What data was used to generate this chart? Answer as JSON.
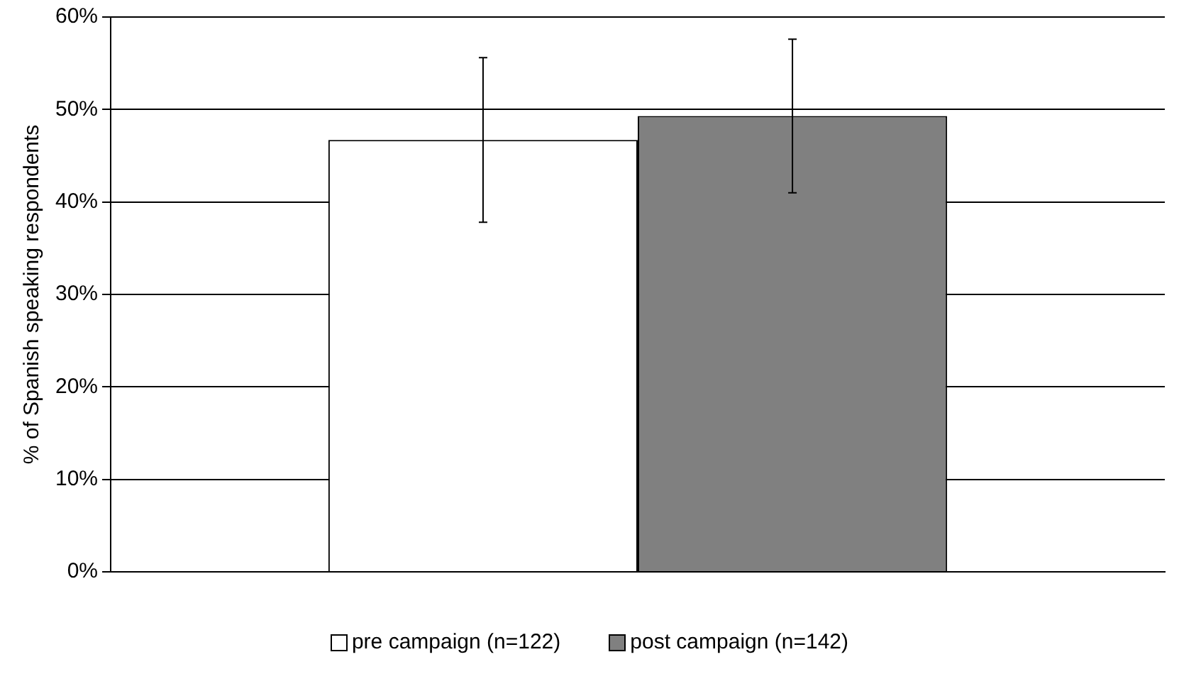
{
  "chart_data": {
    "type": "bar",
    "ylabel": "% of Spanish speaking respondents",
    "categories": [
      null
    ],
    "series": [
      {
        "name": "pre campaign (n=122)",
        "color": "#ffffff",
        "values": [
          46.7
        ],
        "errors": [
          8.9
        ]
      },
      {
        "name": "post campaign (n=142)",
        "color": "#808080",
        "values": [
          49.3
        ],
        "errors": [
          8.3
        ]
      }
    ],
    "ylim": [
      0,
      60
    ],
    "yticks": [
      {
        "value": 0,
        "label": "0%"
      },
      {
        "value": 10,
        "label": "10%"
      },
      {
        "value": 20,
        "label": "20%"
      },
      {
        "value": 30,
        "label": "30%"
      },
      {
        "value": 40,
        "label": "40%"
      },
      {
        "value": 50,
        "label": "50%"
      },
      {
        "value": 60,
        "label": "60%"
      }
    ],
    "grid": "y",
    "legend": "bottom"
  }
}
